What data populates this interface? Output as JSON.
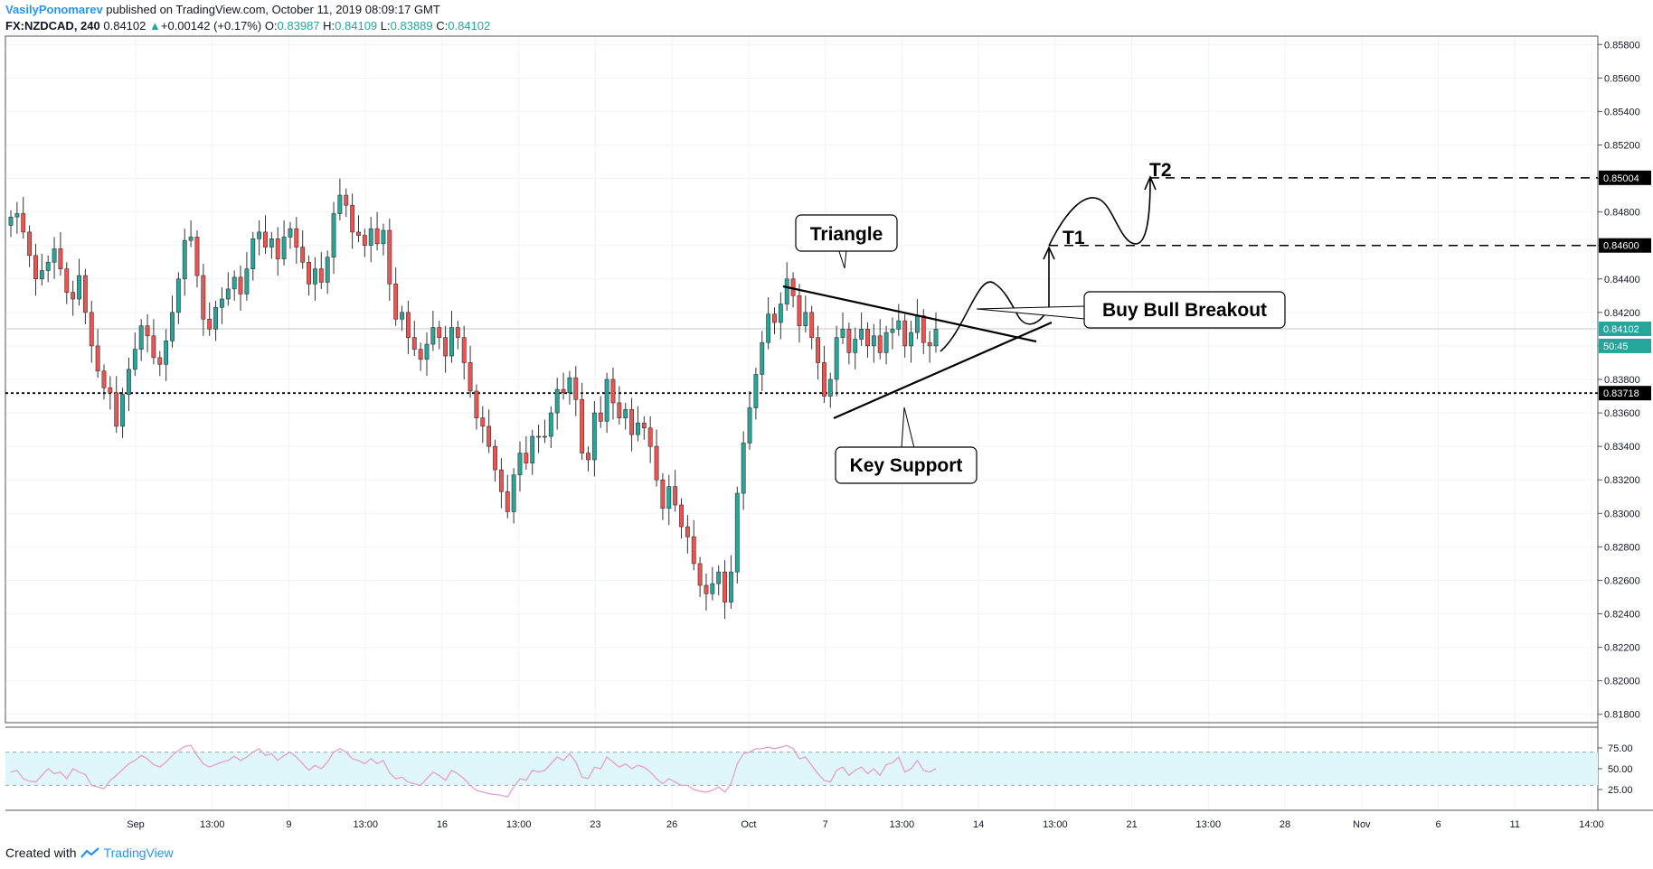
{
  "header": {
    "author": "VasilyPonomarev",
    "published": "published on TradingView.com, October 11, 2019 08:09:17 GMT",
    "symbol": "FX:NZDCAD, 240",
    "last": "0.84102",
    "change_arrow": "▲",
    "change": "+0.00142 (+0.17%)",
    "o_label": "O:",
    "o": "0.83987",
    "h_label": "H:",
    "h": "0.84109",
    "l_label": "L:",
    "l": "0.83889",
    "c_label": "C:",
    "c": "0.84102"
  },
  "footer": {
    "created_with": "Created with",
    "brand": "TradingView",
    "logo_icon": "tradingview-logo-icon"
  },
  "colors": {
    "up": "#26a69a",
    "down": "#ef5350",
    "rsi": "#e4a0c8",
    "rsi_band": "#dff6fb",
    "text": "#131722",
    "accent": "#2196f3"
  },
  "price_axis": {
    "ticks": [
      "0.85800",
      "0.85600",
      "0.85400",
      "0.85200",
      "0.85000",
      "0.84800",
      "0.84600",
      "0.84400",
      "0.84200",
      "0.84000",
      "0.83800",
      "0.83600",
      "0.83400",
      "0.83200",
      "0.83000",
      "0.82800",
      "0.82600",
      "0.82400",
      "0.82200",
      "0.82000",
      "0.81800"
    ],
    "tick_values": [
      0.858,
      0.856,
      0.854,
      0.852,
      0.85,
      0.848,
      0.846,
      0.844,
      0.842,
      0.84,
      0.838,
      0.836,
      0.834,
      0.832,
      0.83,
      0.828,
      0.826,
      0.824,
      0.822,
      0.82,
      0.818
    ],
    "labels": [
      {
        "text": "0.85004",
        "value": 0.85004,
        "style": "black"
      },
      {
        "text": "0.84600",
        "value": 0.846,
        "style": "black"
      },
      {
        "text": "0.84102",
        "value": 0.84102,
        "style": "green"
      },
      {
        "text": "50:45",
        "value": 0.84,
        "style": "green"
      },
      {
        "text": "0.83718",
        "value": 0.83718,
        "style": "black"
      }
    ]
  },
  "rsi_axis": {
    "ticks": [
      "75.00",
      "50.00",
      "25.00"
    ],
    "tick_values": [
      75,
      50,
      25
    ]
  },
  "time_axis": {
    "labels": [
      "Sep",
      "13:00",
      "9",
      "13:00",
      "16",
      "13:00",
      "23",
      "26",
      "Oct",
      "7",
      "13:00",
      "14",
      "13:00",
      "21",
      "13:00",
      "28",
      "Nov",
      "6",
      "11",
      "14:00"
    ]
  },
  "annotations": {
    "triangle": "Triangle",
    "buy": "Buy Bull Breakout",
    "support": "Key Support",
    "t1": "T1",
    "t2": "T2"
  },
  "chart_data": {
    "type": "candlestick",
    "symbol": "FX:NZDCAD",
    "interval": "240",
    "ylim": [
      0.8175,
      0.8585
    ],
    "levels": {
      "key_support": 0.83718,
      "t1": 0.846,
      "t2": 0.85004
    },
    "closes": [
      0.8477,
      0.8479,
      0.8468,
      0.8454,
      0.844,
      0.8445,
      0.845,
      0.8458,
      0.8446,
      0.8432,
      0.8428,
      0.8442,
      0.842,
      0.84,
      0.8385,
      0.8375,
      0.8372,
      0.8352,
      0.8371,
      0.8386,
      0.8398,
      0.8412,
      0.8406,
      0.8393,
      0.8389,
      0.8403,
      0.842,
      0.844,
      0.8463,
      0.8465,
      0.8442,
      0.8416,
      0.841,
      0.8423,
      0.8428,
      0.8434,
      0.8441,
      0.8431,
      0.8446,
      0.8464,
      0.8468,
      0.8459,
      0.8464,
      0.8452,
      0.8465,
      0.847,
      0.8459,
      0.845,
      0.8437,
      0.8446,
      0.8438,
      0.8453,
      0.8479,
      0.849,
      0.8484,
      0.8468,
      0.8466,
      0.846,
      0.847,
      0.8461,
      0.8469,
      0.8437,
      0.8416,
      0.842,
      0.8405,
      0.8398,
      0.8392,
      0.8401,
      0.8411,
      0.8405,
      0.8394,
      0.8411,
      0.8405,
      0.839,
      0.8373,
      0.8357,
      0.8352,
      0.834,
      0.8326,
      0.8313,
      0.8301,
      0.8323,
      0.8336,
      0.833,
      0.8346,
      0.8346,
      0.8346,
      0.836,
      0.8374,
      0.8372,
      0.8381,
      0.8368,
      0.8336,
      0.8332,
      0.836,
      0.8355,
      0.838,
      0.8366,
      0.8357,
      0.8362,
      0.8347,
      0.8354,
      0.8351,
      0.834,
      0.832,
      0.8303,
      0.8316,
      0.8305,
      0.8292,
      0.8286,
      0.827,
      0.8257,
      0.8252,
      0.8258,
      0.8265,
      0.8247,
      0.8265,
      0.8312,
      0.8342,
      0.8363,
      0.8383,
      0.8402,
      0.8419,
      0.8414,
      0.8425,
      0.844,
      0.843,
      0.8412,
      0.842,
      0.8405,
      0.839,
      0.837,
      0.838,
      0.8405,
      0.841,
      0.8396,
      0.8404,
      0.841,
      0.84,
      0.8406,
      0.8396,
      0.8408,
      0.841,
      0.8415,
      0.84,
      0.8408,
      0.8418,
      0.8402,
      0.84,
      0.841
    ],
    "rsi_range": [
      0,
      100
    ],
    "rsi_levels": [
      70,
      30
    ],
    "rsi": [
      46,
      48,
      38,
      35,
      34,
      42,
      50,
      44,
      46,
      38,
      50,
      46,
      43,
      30,
      28,
      26,
      36,
      42,
      49,
      56,
      60,
      66,
      62,
      55,
      52,
      58,
      66,
      72,
      77,
      78,
      66,
      56,
      52,
      55,
      58,
      60,
      65,
      60,
      64,
      70,
      74,
      66,
      68,
      60,
      66,
      70,
      64,
      56,
      48,
      54,
      50,
      58,
      70,
      74,
      70,
      62,
      60,
      56,
      62,
      56,
      60,
      45,
      38,
      40,
      34,
      32,
      30,
      38,
      46,
      42,
      36,
      48,
      44,
      38,
      30,
      24,
      22,
      20,
      19,
      18,
      16,
      28,
      38,
      36,
      48,
      46,
      48,
      56,
      64,
      60,
      68,
      58,
      40,
      38,
      52,
      50,
      64,
      58,
      52,
      56,
      50,
      54,
      52,
      46,
      38,
      32,
      38,
      34,
      30,
      30,
      25,
      23,
      22,
      24,
      28,
      22,
      32,
      56,
      68,
      70,
      74,
      74,
      76,
      74,
      76,
      78,
      74,
      62,
      64,
      54,
      44,
      36,
      34,
      48,
      52,
      42,
      48,
      52,
      44,
      50,
      42,
      55,
      57,
      64,
      46,
      50,
      60,
      48,
      46,
      50
    ]
  }
}
